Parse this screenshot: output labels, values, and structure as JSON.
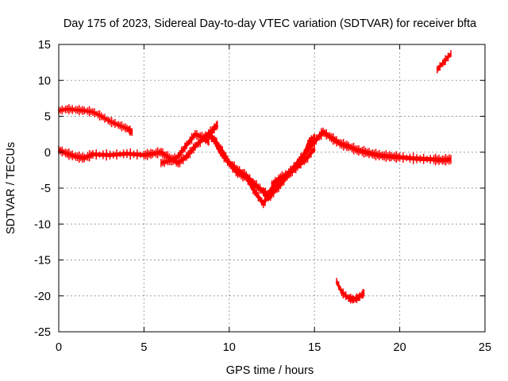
{
  "chart_data": {
    "type": "scatter",
    "title": "Day 175 of 2023, Sidereal Day-to-day VTEC variation (SDTVAR) for receiver bfta",
    "xlabel": "GPS time / hours",
    "ylabel": "SDTVAR / TECUs",
    "xlim": [
      0,
      25
    ],
    "ylim": [
      -25,
      15
    ],
    "xticks": [
      0,
      5,
      10,
      15,
      20,
      25
    ],
    "yticks": [
      -25,
      -20,
      -15,
      -10,
      -5,
      0,
      5,
      10,
      15
    ],
    "grid": true,
    "series_color": "#ff0000",
    "series": [
      {
        "name": "track-1",
        "spread": 0.4,
        "x": [
          0.0,
          0.5,
          1.0,
          1.5,
          2.0,
          2.5,
          3.0,
          3.5,
          4.0,
          4.3
        ],
        "y": [
          5.8,
          6.0,
          5.9,
          5.8,
          5.6,
          5.0,
          4.3,
          3.8,
          3.3,
          2.8
        ]
      },
      {
        "name": "track-2",
        "spread": 0.55,
        "x": [
          0.0,
          0.5,
          1.0,
          1.5,
          2.0,
          3.0,
          4.0,
          5.0,
          5.5,
          6.0,
          6.5,
          7.0,
          7.5,
          8.0,
          8.5,
          9.0,
          9.3
        ],
        "y": [
          0.3,
          -0.2,
          -0.6,
          -0.8,
          -0.3,
          -0.4,
          -0.2,
          -0.4,
          -0.2,
          0.0,
          -0.8,
          -1.5,
          -0.6,
          0.8,
          2.0,
          3.0,
          3.8
        ]
      },
      {
        "name": "track-3",
        "spread": 0.5,
        "x": [
          6.0,
          6.5,
          7.0,
          7.5,
          8.0,
          8.5,
          8.8
        ],
        "y": [
          -1.5,
          -1.2,
          -0.6,
          1.0,
          2.5,
          2.0,
          1.5
        ]
      },
      {
        "name": "track-4",
        "spread": 0.6,
        "x": [
          8.8,
          9.2,
          9.5,
          10.0,
          10.5,
          11.0,
          11.5,
          12.0,
          12.3,
          12.5,
          13.0,
          13.5,
          14.0,
          14.5,
          15.0,
          15.5,
          16.0,
          16.5,
          17.0,
          17.5,
          18.0,
          18.5,
          19.0,
          19.5,
          20.0,
          21.0,
          22.0,
          22.5,
          23.0
        ],
        "y": [
          2.5,
          1.5,
          0.0,
          -1.5,
          -2.5,
          -3.3,
          -4.5,
          -5.5,
          -6.2,
          -5.8,
          -4.5,
          -3.0,
          -1.5,
          0.0,
          1.5,
          2.8,
          2.0,
          1.2,
          0.8,
          0.3,
          0.0,
          -0.3,
          -0.5,
          -0.6,
          -0.7,
          -0.9,
          -1.0,
          -1.1,
          -1.0
        ]
      },
      {
        "name": "track-5",
        "spread": 0.5,
        "x": [
          9.0,
          9.5,
          10.0,
          10.5,
          11.0,
          11.5,
          12.0,
          12.5,
          13.0,
          13.5,
          14.0,
          14.5,
          15.0
        ],
        "y": [
          2.0,
          0.5,
          -1.5,
          -3.0,
          -3.5,
          -5.5,
          -7.2,
          -5.0,
          -4.0,
          -2.8,
          -2.0,
          -1.0,
          0.5
        ]
      },
      {
        "name": "track-6",
        "spread": 0.5,
        "x": [
          12.5,
          13.0,
          13.5,
          14.0,
          14.3,
          14.7,
          15.0
        ],
        "y": [
          -4.5,
          -3.5,
          -3.0,
          -2.0,
          -1.0,
          1.5,
          2.0
        ]
      },
      {
        "name": "track-7",
        "spread": 0.35,
        "x": [
          16.3,
          16.6,
          17.0,
          17.3,
          17.6,
          17.9
        ],
        "y": [
          -18.0,
          -19.5,
          -20.3,
          -20.5,
          -20.2,
          -19.6
        ]
      },
      {
        "name": "track-8",
        "spread": 0.35,
        "x": [
          22.2,
          22.6,
          23.0
        ],
        "y": [
          11.5,
          12.6,
          13.7
        ]
      }
    ]
  }
}
